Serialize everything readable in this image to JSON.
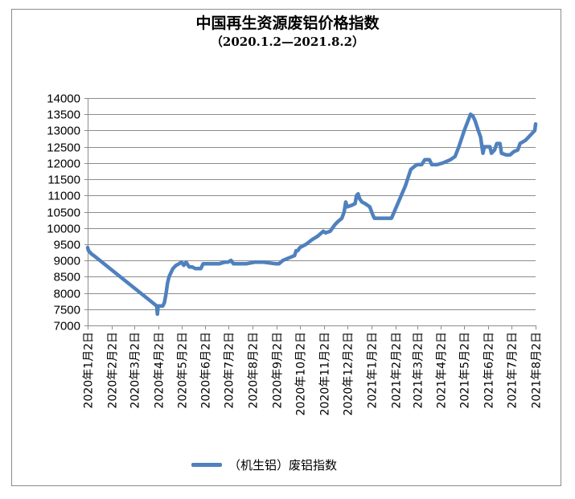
{
  "chart_data": {
    "type": "line",
    "title": "中国再生资源废铝价格指数",
    "subtitle": "（2020.1.2—2021.8.2）",
    "xlabel": "",
    "ylabel": "",
    "ylim": [
      7000,
      14000
    ],
    "y_ticks": [
      7000,
      7500,
      8000,
      8500,
      9000,
      9500,
      10000,
      10500,
      11000,
      11500,
      12000,
      12500,
      13000,
      13500,
      14000
    ],
    "x_range": [
      "2020-01-02",
      "2021-08-02"
    ],
    "x_tick_labels": [
      {
        "date": "2020-01-02",
        "label": "2020年1月2日"
      },
      {
        "date": "2020-02-02",
        "label": "2020年2月2日"
      },
      {
        "date": "2020-03-02",
        "label": "2020年3月2日"
      },
      {
        "date": "2020-04-02",
        "label": "2020年4月2日"
      },
      {
        "date": "2020-05-02",
        "label": "2020年5月2日"
      },
      {
        "date": "2020-06-02",
        "label": "2020年6月2日"
      },
      {
        "date": "2020-07-02",
        "label": "2020年7月2日"
      },
      {
        "date": "2020-08-02",
        "label": "2020年8月2日"
      },
      {
        "date": "2020-09-02",
        "label": "2020年9月2日"
      },
      {
        "date": "2020-10-02",
        "label": "2020年10月2日"
      },
      {
        "date": "2020-11-02",
        "label": "2020年11月2日"
      },
      {
        "date": "2020-12-02",
        "label": "2020年12月2日"
      },
      {
        "date": "2021-01-02",
        "label": "2021年1月2日"
      },
      {
        "date": "2021-02-02",
        "label": "2021年2月2日"
      },
      {
        "date": "2021-03-02",
        "label": "2021年3月2日"
      },
      {
        "date": "2021-04-02",
        "label": "2021年4月2日"
      },
      {
        "date": "2021-05-02",
        "label": "2021年5月2日"
      },
      {
        "date": "2021-06-02",
        "label": "2021年6月2日"
      },
      {
        "date": "2021-07-02",
        "label": "2021年7月2日"
      },
      {
        "date": "2021-08-02",
        "label": "2021年8月2日"
      }
    ],
    "grid": "horizontal",
    "legend": "bottom",
    "series": [
      {
        "name": "（机生铝）废铝指数",
        "color": "#4f81bd",
        "points": [
          [
            "2020-01-02",
            9400
          ],
          [
            "2020-01-03",
            9300
          ],
          [
            "2020-01-05",
            9250
          ],
          [
            "2020-01-07",
            9200
          ],
          [
            "2020-01-10",
            9150
          ],
          [
            "2020-03-31",
            7600
          ],
          [
            "2020-04-01",
            7350
          ],
          [
            "2020-04-02",
            7600
          ],
          [
            "2020-04-08",
            7600
          ],
          [
            "2020-04-10",
            7700
          ],
          [
            "2020-04-12",
            7950
          ],
          [
            "2020-04-14",
            8300
          ],
          [
            "2020-04-16",
            8500
          ],
          [
            "2020-04-18",
            8600
          ],
          [
            "2020-04-21",
            8750
          ],
          [
            "2020-04-25",
            8850
          ],
          [
            "2020-04-29",
            8900
          ],
          [
            "2020-05-02",
            8950
          ],
          [
            "2020-05-05",
            8850
          ],
          [
            "2020-05-08",
            8950
          ],
          [
            "2020-05-12",
            8800
          ],
          [
            "2020-05-16",
            8800
          ],
          [
            "2020-05-20",
            8750
          ],
          [
            "2020-05-27",
            8750
          ],
          [
            "2020-05-30",
            8900
          ],
          [
            "2020-06-10",
            8900
          ],
          [
            "2020-06-20",
            8900
          ],
          [
            "2020-06-27",
            8950
          ],
          [
            "2020-07-01",
            8950
          ],
          [
            "2020-07-05",
            9000
          ],
          [
            "2020-07-08",
            8900
          ],
          [
            "2020-07-15",
            8900
          ],
          [
            "2020-07-25",
            8900
          ],
          [
            "2020-08-05",
            8950
          ],
          [
            "2020-08-15",
            8950
          ],
          [
            "2020-08-31",
            8900
          ],
          [
            "2020-09-05",
            8900
          ],
          [
            "2020-09-10",
            9000
          ],
          [
            "2020-09-20",
            9100
          ],
          [
            "2020-09-25",
            9150
          ],
          [
            "2020-09-27",
            9300
          ],
          [
            "2020-09-29",
            9300
          ],
          [
            "2020-10-02",
            9400
          ],
          [
            "2020-10-10",
            9500
          ],
          [
            "2020-10-18",
            9650
          ],
          [
            "2020-10-25",
            9750
          ],
          [
            "2020-11-01",
            9900
          ],
          [
            "2020-11-04",
            9850
          ],
          [
            "2020-11-10",
            9900
          ],
          [
            "2020-11-13",
            10000
          ],
          [
            "2020-11-16",
            10100
          ],
          [
            "2020-11-20",
            10200
          ],
          [
            "2020-11-25",
            10300
          ],
          [
            "2020-11-28",
            10500
          ],
          [
            "2020-11-30",
            10800
          ],
          [
            "2020-12-02",
            10650
          ],
          [
            "2020-12-08",
            10700
          ],
          [
            "2020-12-12",
            10750
          ],
          [
            "2020-12-14",
            11000
          ],
          [
            "2020-12-16",
            11050
          ],
          [
            "2020-12-18",
            10900
          ],
          [
            "2020-12-21",
            10800
          ],
          [
            "2020-12-25",
            10750
          ],
          [
            "2020-12-31",
            10650
          ],
          [
            "2021-01-04",
            10400
          ],
          [
            "2021-01-06",
            10300
          ],
          [
            "2021-01-15",
            10300
          ],
          [
            "2021-01-28",
            10300
          ],
          [
            "2021-02-15",
            11300
          ],
          [
            "2021-02-22",
            11800
          ],
          [
            "2021-02-27",
            11900
          ],
          [
            "2021-03-02",
            11950
          ],
          [
            "2021-03-08",
            11950
          ],
          [
            "2021-03-12",
            12100
          ],
          [
            "2021-03-18",
            12100
          ],
          [
            "2021-03-21",
            11950
          ],
          [
            "2021-03-28",
            11950
          ],
          [
            "2021-04-04",
            12000
          ],
          [
            "2021-04-14",
            12100
          ],
          [
            "2021-04-20",
            12200
          ],
          [
            "2021-04-25",
            12500
          ],
          [
            "2021-05-02",
            13000
          ],
          [
            "2021-05-10",
            13500
          ],
          [
            "2021-05-13",
            13450
          ],
          [
            "2021-05-16",
            13300
          ],
          [
            "2021-05-20",
            13000
          ],
          [
            "2021-05-23",
            12800
          ],
          [
            "2021-05-26",
            12300
          ],
          [
            "2021-05-28",
            12500
          ],
          [
            "2021-06-04",
            12500
          ],
          [
            "2021-06-06",
            12300
          ],
          [
            "2021-06-10",
            12400
          ],
          [
            "2021-06-13",
            12600
          ],
          [
            "2021-06-17",
            12600
          ],
          [
            "2021-06-19",
            12300
          ],
          [
            "2021-06-25",
            12250
          ],
          [
            "2021-06-30",
            12250
          ],
          [
            "2021-07-05",
            12350
          ],
          [
            "2021-07-10",
            12400
          ],
          [
            "2021-07-13",
            12600
          ],
          [
            "2021-07-20",
            12700
          ],
          [
            "2021-07-28",
            12900
          ],
          [
            "2021-08-01",
            13000
          ],
          [
            "2021-08-02",
            13200
          ]
        ]
      }
    ]
  }
}
